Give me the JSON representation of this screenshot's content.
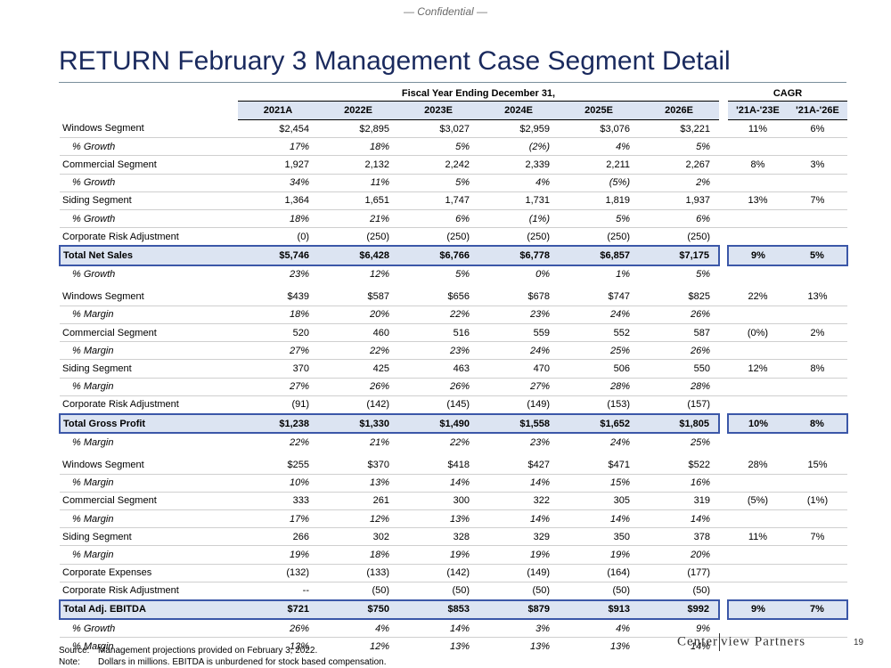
{
  "header": {
    "confidential": "— Confidential —",
    "title": "RETURN February 3 Management Case Segment Detail"
  },
  "table": {
    "group_fiscal": "Fiscal Year Ending December 31,",
    "group_cagr": "CAGR",
    "year_headers": [
      "2021A",
      "2022E",
      "2023E",
      "2024E",
      "2025E",
      "2026E"
    ],
    "cagr_headers": [
      "'21A-'23E",
      "'21A-'26E"
    ],
    "blocks": [
      {
        "rows": [
          {
            "label": "Windows Segment",
            "style": "seg",
            "values": [
              "$2,454",
              "$2,895",
              "$3,027",
              "$2,959",
              "$3,076",
              "$3,221"
            ],
            "cagr": [
              "11%",
              "6%"
            ]
          },
          {
            "label": "% Growth",
            "style": "sub",
            "values": [
              "17%",
              "18%",
              "5%",
              "(2%)",
              "4%",
              "5%"
            ],
            "cagr": [
              "",
              ""
            ]
          },
          {
            "label": "Commercial Segment",
            "style": "seg",
            "values": [
              "1,927",
              "2,132",
              "2,242",
              "2,339",
              "2,211",
              "2,267"
            ],
            "cagr": [
              "8%",
              "3%"
            ]
          },
          {
            "label": "% Growth",
            "style": "sub",
            "values": [
              "34%",
              "11%",
              "5%",
              "4%",
              "(5%)",
              "2%"
            ],
            "cagr": [
              "",
              ""
            ]
          },
          {
            "label": "Siding Segment",
            "style": "seg",
            "values": [
              "1,364",
              "1,651",
              "1,747",
              "1,731",
              "1,819",
              "1,937"
            ],
            "cagr": [
              "13%",
              "7%"
            ]
          },
          {
            "label": "% Growth",
            "style": "sub",
            "values": [
              "18%",
              "21%",
              "6%",
              "(1%)",
              "5%",
              "6%"
            ],
            "cagr": [
              "",
              ""
            ]
          },
          {
            "label": "Corporate Risk Adjustment",
            "style": "seg",
            "values": [
              "(0)",
              "(250)",
              "(250)",
              "(250)",
              "(250)",
              "(250)"
            ],
            "cagr": [
              "",
              ""
            ]
          },
          {
            "label": "Total Net Sales",
            "style": "total",
            "values": [
              "$5,746",
              "$6,428",
              "$6,766",
              "$6,778",
              "$6,857",
              "$7,175"
            ],
            "cagr": [
              "9%",
              "5%"
            ]
          },
          {
            "label": "% Growth",
            "style": "sub",
            "values": [
              "23%",
              "12%",
              "5%",
              "0%",
              "1%",
              "5%"
            ],
            "cagr": [
              "",
              ""
            ]
          }
        ]
      },
      {
        "rows": [
          {
            "label": "Windows Segment",
            "style": "seg",
            "values": [
              "$439",
              "$587",
              "$656",
              "$678",
              "$747",
              "$825"
            ],
            "cagr": [
              "22%",
              "13%"
            ]
          },
          {
            "label": "% Margin",
            "style": "sub",
            "values": [
              "18%",
              "20%",
              "22%",
              "23%",
              "24%",
              "26%"
            ],
            "cagr": [
              "",
              ""
            ]
          },
          {
            "label": "Commercial Segment",
            "style": "seg",
            "values": [
              "520",
              "460",
              "516",
              "559",
              "552",
              "587"
            ],
            "cagr": [
              "(0%)",
              "2%"
            ]
          },
          {
            "label": "% Margin",
            "style": "sub",
            "values": [
              "27%",
              "22%",
              "23%",
              "24%",
              "25%",
              "26%"
            ],
            "cagr": [
              "",
              ""
            ]
          },
          {
            "label": "Siding Segment",
            "style": "seg",
            "values": [
              "370",
              "425",
              "463",
              "470",
              "506",
              "550"
            ],
            "cagr": [
              "12%",
              "8%"
            ]
          },
          {
            "label": "% Margin",
            "style": "sub",
            "values": [
              "27%",
              "26%",
              "26%",
              "27%",
              "28%",
              "28%"
            ],
            "cagr": [
              "",
              ""
            ]
          },
          {
            "label": "Corporate Risk Adjustment",
            "style": "seg",
            "values": [
              "(91)",
              "(142)",
              "(145)",
              "(149)",
              "(153)",
              "(157)"
            ],
            "cagr": [
              "",
              ""
            ]
          },
          {
            "label": "Total Gross Profit",
            "style": "total",
            "values": [
              "$1,238",
              "$1,330",
              "$1,490",
              "$1,558",
              "$1,652",
              "$1,805"
            ],
            "cagr": [
              "10%",
              "8%"
            ]
          },
          {
            "label": "% Margin",
            "style": "sub",
            "values": [
              "22%",
              "21%",
              "22%",
              "23%",
              "24%",
              "25%"
            ],
            "cagr": [
              "",
              ""
            ]
          }
        ]
      },
      {
        "rows": [
          {
            "label": "Windows Segment",
            "style": "seg",
            "values": [
              "$255",
              "$370",
              "$418",
              "$427",
              "$471",
              "$522"
            ],
            "cagr": [
              "28%",
              "15%"
            ]
          },
          {
            "label": "% Margin",
            "style": "sub",
            "values": [
              "10%",
              "13%",
              "14%",
              "14%",
              "15%",
              "16%"
            ],
            "cagr": [
              "",
              ""
            ]
          },
          {
            "label": "Commercial Segment",
            "style": "seg",
            "values": [
              "333",
              "261",
              "300",
              "322",
              "305",
              "319"
            ],
            "cagr": [
              "(5%)",
              "(1%)"
            ]
          },
          {
            "label": "% Margin",
            "style": "sub",
            "values": [
              "17%",
              "12%",
              "13%",
              "14%",
              "14%",
              "14%"
            ],
            "cagr": [
              "",
              ""
            ]
          },
          {
            "label": "Siding Segment",
            "style": "seg",
            "values": [
              "266",
              "302",
              "328",
              "329",
              "350",
              "378"
            ],
            "cagr": [
              "11%",
              "7%"
            ]
          },
          {
            "label": "% Margin",
            "style": "sub",
            "values": [
              "19%",
              "18%",
              "19%",
              "19%",
              "19%",
              "20%"
            ],
            "cagr": [
              "",
              ""
            ]
          },
          {
            "label": "Corporate Expenses",
            "style": "seg",
            "values": [
              "(132)",
              "(133)",
              "(142)",
              "(149)",
              "(164)",
              "(177)"
            ],
            "cagr": [
              "",
              ""
            ]
          },
          {
            "label": "Corporate Risk Adjustment",
            "style": "seg",
            "values": [
              "--",
              "(50)",
              "(50)",
              "(50)",
              "(50)",
              "(50)"
            ],
            "cagr": [
              "",
              ""
            ]
          },
          {
            "label": "Total Adj. EBITDA",
            "style": "total",
            "values": [
              "$721",
              "$750",
              "$853",
              "$879",
              "$913",
              "$992"
            ],
            "cagr": [
              "9%",
              "7%"
            ]
          },
          {
            "label": "% Growth",
            "style": "sub",
            "values": [
              "26%",
              "4%",
              "14%",
              "3%",
              "4%",
              "9%"
            ],
            "cagr": [
              "",
              ""
            ]
          },
          {
            "label": "% Margin",
            "style": "sub",
            "values": [
              "13%",
              "12%",
              "13%",
              "13%",
              "13%",
              "14%"
            ],
            "cagr": [
              "",
              ""
            ]
          }
        ]
      }
    ]
  },
  "footnotes": {
    "source_key": "Source:",
    "source_text": "Management projections provided on February 3, 2022.",
    "note_key": "Note:",
    "note_text": "Dollars in millions. EBITDA is unburdened for stock based compensation."
  },
  "logo": {
    "left": "Center",
    "right": "view Partners"
  },
  "page_number": "19"
}
